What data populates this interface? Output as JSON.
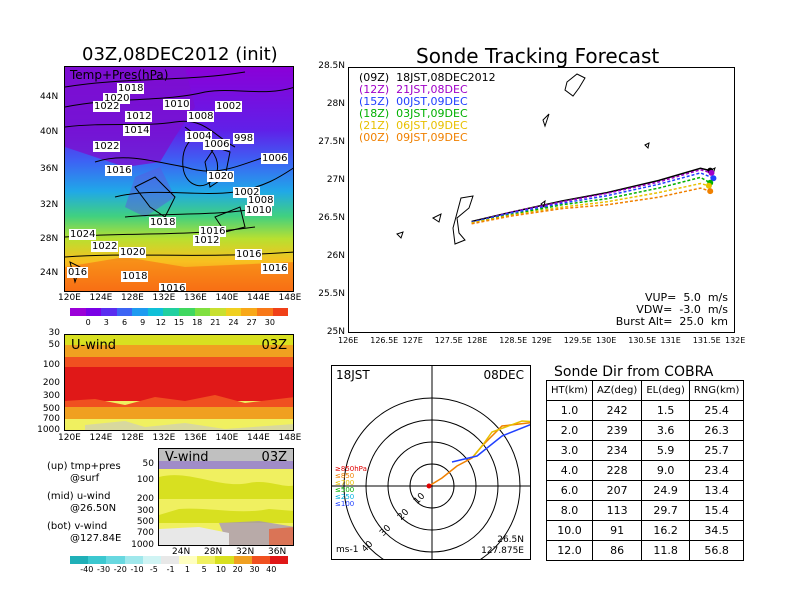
{
  "left_map": {
    "title": "03Z,08DEC2012 (init)",
    "subtitle": "Temp+Pres(hPa)",
    "lat_ticks": [
      "44N",
      "40N",
      "36N",
      "32N",
      "28N",
      "24N"
    ],
    "lon_ticks": [
      "120E",
      "124E",
      "128E",
      "132E",
      "136E",
      "140E",
      "144E",
      "148E"
    ],
    "isobars": [
      "1018",
      "1020",
      "1022",
      "1010",
      "1002",
      "1008",
      "1012",
      "1014",
      "1004",
      "998",
      "1006",
      "1022",
      "1006",
      "1016",
      "1020",
      "1002",
      "1008",
      "1010",
      "1018",
      "1016",
      "1012",
      "1024",
      "1022",
      "1020",
      "1016",
      "1016",
      "1018",
      "016",
      "1016"
    ],
    "colorbar_ticks": [
      "0",
      "3",
      "6",
      "9",
      "12",
      "15",
      "18",
      "21",
      "24",
      "27",
      "30"
    ],
    "colorbar_colors": [
      "#9b00d8",
      "#7a00e6",
      "#5a2cf0",
      "#3c64f4",
      "#1e9bf0",
      "#10c0d8",
      "#20d0a0",
      "#40d860",
      "#80e040",
      "#c8e030",
      "#f0d020",
      "#f8a818",
      "#f87818",
      "#f04018"
    ]
  },
  "uwind": {
    "label": "U-wind",
    "time": "03Z",
    "y_ticks": [
      "30",
      "50",
      "100",
      "200",
      "300",
      "500",
      "700",
      "1000"
    ],
    "x_ticks": [
      "120E",
      "124E",
      "128E",
      "132E",
      "136E",
      "140E",
      "144E",
      "148E"
    ]
  },
  "vwind": {
    "label": "V-wind",
    "time": "03Z",
    "y_ticks": [
      "50",
      "100",
      "200",
      "300",
      "500",
      "700",
      "1000"
    ],
    "x_ticks": [
      "24N",
      "28N",
      "32N",
      "36N"
    ],
    "colorbar_ticks": [
      "-40",
      "-30",
      "-20",
      "-10",
      "-5",
      "-1",
      "1",
      "5",
      "10",
      "20",
      "30",
      "40"
    ],
    "colorbar_colors": [
      "#20b0b8",
      "#3cc8d0",
      "#68d8e0",
      "#a0e8ec",
      "#d0f4f4",
      "#e8e8e8",
      "#ffffc0",
      "#f0f060",
      "#d8e020",
      "#f0a020",
      "#f05020",
      "#e01818"
    ]
  },
  "legend_notes": [
    {
      "line1": "(up) tmp+pres",
      "line2": "@surf"
    },
    {
      "line1": "(mid) u-wind",
      "line2": "@26.50N"
    },
    {
      "line1": "(bot) v-wind",
      "line2": "@127.84E"
    }
  ],
  "track": {
    "title": "Sonde Tracking Forecast",
    "lat_ticks": [
      "28.5N",
      "28N",
      "27.5N",
      "27N",
      "26.5N",
      "26N",
      "25.5N",
      "25N"
    ],
    "lon_ticks": [
      "126E",
      "126.5E",
      "127E",
      "127.5E",
      "128E",
      "128.5E",
      "129E",
      "129.5E",
      "130E",
      "130.5E",
      "131E",
      "131.5E",
      "132E"
    ],
    "legend": [
      {
        "text": "(09Z)  18JST,08DEC2012",
        "color": "#000000"
      },
      {
        "text": "(12Z)  21JST,08DEC",
        "color": "#a000c8"
      },
      {
        "text": "(15Z)  00JST,09DEC",
        "color": "#2040ff"
      },
      {
        "text": "(18Z)  03JST,09DEC",
        "color": "#00b000"
      },
      {
        "text": "(21Z)  06JST,09DEC",
        "color": "#e8c000"
      },
      {
        "text": "(00Z)  09JST,09DEC",
        "color": "#f08000"
      }
    ],
    "params": [
      "VUP=  5.0  m/s",
      "VDW=  -3.0  m/s",
      "Burst Alt=  25.0  km"
    ]
  },
  "chart_data": [
    {
      "type": "line",
      "title": "Sonde Tracking Forecast",
      "xlabel": "",
      "ylabel": "",
      "xlim": [
        126,
        132
      ],
      "ylim": [
        25,
        28.5
      ],
      "series": [
        {
          "name": "(09Z) 18JST,08DEC2012",
          "points": [
            [
              127.9,
              26.48
            ],
            [
              128.5,
              26.6
            ],
            [
              129.3,
              26.75
            ],
            [
              130.0,
              26.86
            ],
            [
              130.8,
              27.02
            ],
            [
              131.45,
              27.18
            ],
            [
              131.6,
              27.15
            ]
          ]
        },
        {
          "name": "(12Z) 21JST,08DEC",
          "points": [
            [
              127.9,
              26.47
            ],
            [
              128.5,
              26.6
            ],
            [
              129.3,
              26.74
            ],
            [
              130.0,
              26.85
            ],
            [
              130.8,
              27.0
            ],
            [
              131.45,
              27.16
            ],
            [
              131.62,
              27.12
            ]
          ]
        },
        {
          "name": "(15Z) 00JST,09DEC",
          "points": [
            [
              127.9,
              26.47
            ],
            [
              128.5,
              26.59
            ],
            [
              129.3,
              26.72
            ],
            [
              130.0,
              26.82
            ],
            [
              130.8,
              26.97
            ],
            [
              131.45,
              27.12
            ],
            [
              131.65,
              27.05
            ]
          ]
        },
        {
          "name": "(18Z) 03JST,09DEC",
          "points": [
            [
              127.9,
              26.46
            ],
            [
              128.5,
              26.57
            ],
            [
              129.3,
              26.7
            ],
            [
              130.0,
              26.78
            ],
            [
              130.8,
              26.92
            ],
            [
              131.45,
              27.06
            ],
            [
              131.6,
              26.99
            ]
          ]
        },
        {
          "name": "(21Z) 06JST,09DEC",
          "points": [
            [
              127.9,
              26.46
            ],
            [
              128.5,
              26.56
            ],
            [
              129.3,
              26.67
            ],
            [
              130.0,
              26.74
            ],
            [
              130.8,
              26.86
            ],
            [
              131.45,
              26.98
            ],
            [
              131.58,
              26.95
            ]
          ]
        },
        {
          "name": "(00Z) 09JST,09DEC",
          "points": [
            [
              127.9,
              26.45
            ],
            [
              128.5,
              26.55
            ],
            [
              129.3,
              26.65
            ],
            [
              130.0,
              26.7
            ],
            [
              130.8,
              26.8
            ],
            [
              131.45,
              26.92
            ],
            [
              131.6,
              26.88
            ]
          ]
        }
      ]
    },
    {
      "type": "table",
      "title": "Sonde Dir from COBRA",
      "columns": [
        "HT(km)",
        "AZ(deg)",
        "EL(deg)",
        "RNG(km)"
      ],
      "rows": [
        [
          "1.0",
          "242",
          "1.5",
          "25.4"
        ],
        [
          "2.0",
          "239",
          "3.6",
          "26.3"
        ],
        [
          "3.0",
          "234",
          "5.9",
          "25.7"
        ],
        [
          "4.0",
          "228",
          "9.0",
          "23.4"
        ],
        [
          "6.0",
          "207",
          "24.9",
          "13.4"
        ],
        [
          "8.0",
          "113",
          "29.7",
          "15.4"
        ],
        [
          "10.0",
          "91",
          "16.2",
          "34.5"
        ],
        [
          "12.0",
          "86",
          "11.8",
          "56.8"
        ]
      ]
    }
  ],
  "polar": {
    "time": "18JST",
    "date": "08DEC",
    "unit": "ms-1",
    "location_lat": "26.5N",
    "location_lon": "127.875E",
    "ring_labels": [
      "10",
      "20",
      "30",
      "40"
    ],
    "levels": [
      {
        "text": "≥850hPa",
        "color": "#e00000"
      },
      {
        "text": "≤850",
        "color": "#f08000"
      },
      {
        "text": "≤700",
        "color": "#e8c000"
      },
      {
        "text": "≤500",
        "color": "#00b000"
      },
      {
        "text": "≤250",
        "color": "#00b0e0"
      },
      {
        "text": "≤100",
        "color": "#2040ff"
      }
    ]
  }
}
